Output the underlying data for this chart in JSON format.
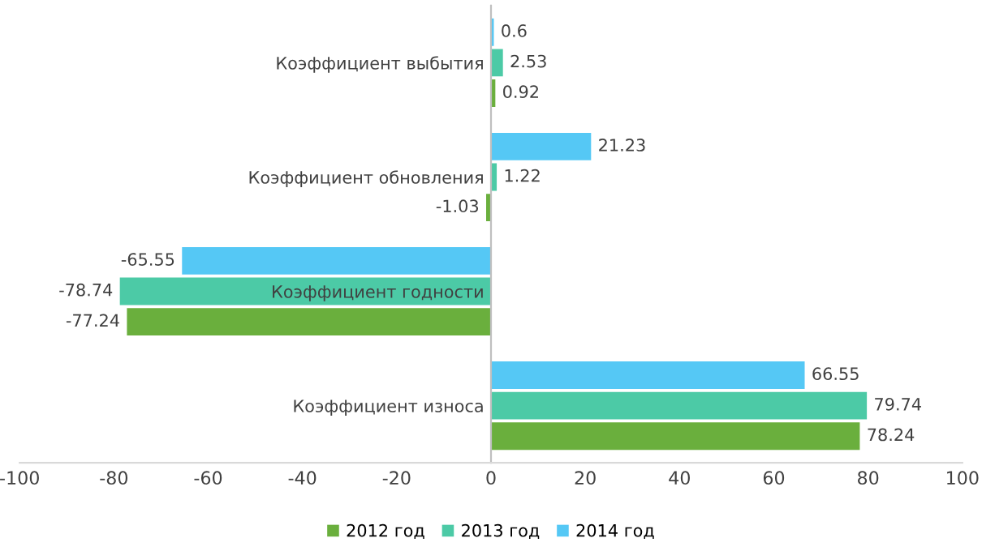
{
  "chart_data": {
    "type": "bar",
    "orientation": "horizontal",
    "categories": [
      "Коэффициент выбытия",
      "Коэффициент обновления",
      "Коэффициент годности",
      "Коэффициент износа"
    ],
    "series": [
      {
        "name": "2012 год",
        "color": "#6aaf3d",
        "values": [
          0.92,
          -1.03,
          -77.24,
          78.24
        ]
      },
      {
        "name": "2013 год",
        "color": "#4ccaa6",
        "values": [
          2.53,
          1.22,
          -78.74,
          79.74
        ]
      },
      {
        "name": "2014 год",
        "color": "#55c8f5",
        "values": [
          0.6,
          21.23,
          -65.55,
          66.55
        ]
      }
    ],
    "xlim": [
      -100,
      100
    ],
    "xticks": [
      -100,
      -80,
      -60,
      -40,
      -20,
      0,
      20,
      40,
      60,
      80,
      100
    ],
    "data_labels": true,
    "legend": "bottom",
    "grid": false
  }
}
